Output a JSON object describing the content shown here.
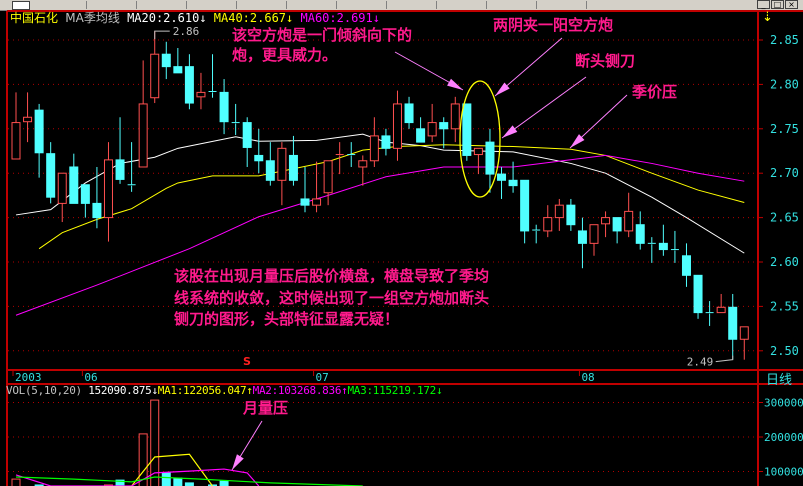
{
  "header": {
    "stock_name": "中国石化",
    "indicator": "MA季均线",
    "ma20_label": "MA20:2.610",
    "ma40_label": "MA40:2.667",
    "ma60_label": "MA60:2.691",
    "arrow_down": "↓"
  },
  "volume_header": {
    "title": "VOL(5,10,20)",
    "vol_value": "152090.875",
    "ma1_label": "MA1:122056.047",
    "ma2_label": "MA2:103268.836",
    "ma3_label": "MA3:115219.172",
    "arrow_up": "↑",
    "arrow_down": "↓"
  },
  "annotations": {
    "cannon_line1": "该空方炮是一门倾斜向下的",
    "cannon_line2": "炮，更具威力。",
    "two_yin_one_yang": "两阴夹一阳空方炮",
    "guillotine": "断头铡刀",
    "quarter_price_pressure": "季价压",
    "monthly_volume_pressure": "月量压",
    "summary_line1": "该股在出现月量压后股价横盘，横盘导致了季均",
    "summary_line2": "线系统的收敛，这时候出现了一组空方炮加断头",
    "summary_line3": "铡刀的图形，头部特征显露无疑！"
  },
  "period_label": "日线",
  "signal_mark": "S",
  "colors": {
    "up": "#ff5050",
    "down": "#50ffff",
    "ma20": "#ffffff",
    "ma40": "#ffff00",
    "ma60": "#ff00ff",
    "vol_ma1": "#ffff00",
    "vol_ma2": "#ff00ff",
    "vol_ma3": "#00ff00",
    "annotation": "#ff1a8c",
    "grid": "#b00000",
    "axis_text": "#33e0e0"
  },
  "chart_data": [
    {
      "type": "candlestick",
      "title": "中国石化",
      "y_ticks": [
        "2.85",
        "2.80",
        "2.75",
        "2.70",
        "2.65",
        "2.60",
        "2.55",
        "2.50"
      ],
      "ylim": [
        2.48,
        2.88
      ],
      "x_ticks": [
        {
          "label": "2003",
          "index": 1
        },
        {
          "label": "06",
          "index": 7
        },
        {
          "label": "07",
          "index": 27
        },
        {
          "label": "08",
          "index": 50
        }
      ],
      "grid": true,
      "high_label": {
        "text": "2.86",
        "index": 13
      },
      "low_label": {
        "text": "2.49",
        "index": 63
      },
      "candles_ohlc": [
        [
          2.716,
          2.791,
          2.716,
          2.757
        ],
        [
          2.758,
          2.791,
          2.735,
          2.763
        ],
        [
          2.771,
          2.778,
          2.695,
          2.723
        ],
        [
          2.722,
          2.735,
          2.666,
          2.673
        ],
        [
          2.666,
          2.7,
          2.645,
          2.7
        ],
        [
          2.707,
          2.722,
          2.666,
          2.666
        ],
        [
          2.687,
          2.687,
          2.65,
          2.666
        ],
        [
          2.666,
          2.707,
          2.638,
          2.65
        ],
        [
          2.65,
          2.735,
          2.623,
          2.715
        ],
        [
          2.715,
          2.763,
          2.688,
          2.693
        ],
        [
          2.687,
          2.735,
          2.679,
          2.686
        ],
        [
          2.707,
          2.827,
          2.707,
          2.778
        ],
        [
          2.785,
          2.86,
          2.779,
          2.834
        ],
        [
          2.834,
          2.848,
          2.806,
          2.82
        ],
        [
          2.82,
          2.841,
          2.813,
          2.813
        ],
        [
          2.82,
          2.834,
          2.772,
          2.779
        ],
        [
          2.786,
          2.813,
          2.772,
          2.791
        ],
        [
          2.792,
          2.834,
          2.785,
          2.791
        ],
        [
          2.791,
          2.806,
          2.744,
          2.758
        ],
        [
          2.757,
          2.778,
          2.743,
          2.756
        ],
        [
          2.757,
          2.763,
          2.707,
          2.729
        ],
        [
          2.72,
          2.75,
          2.7,
          2.714
        ],
        [
          2.714,
          2.735,
          2.686,
          2.692
        ],
        [
          2.692,
          2.735,
          2.664,
          2.728
        ],
        [
          2.72,
          2.742,
          2.686,
          2.692
        ],
        [
          2.671,
          2.707,
          2.656,
          2.664
        ],
        [
          2.664,
          2.713,
          2.656,
          2.671
        ],
        [
          2.678,
          2.714,
          2.664,
          2.714
        ],
        [
          2.72,
          2.735,
          2.699,
          2.721
        ],
        [
          2.721,
          2.735,
          2.707,
          2.72
        ],
        [
          2.707,
          2.72,
          2.686,
          2.714
        ],
        [
          2.714,
          2.763,
          2.707,
          2.742
        ],
        [
          2.742,
          2.75,
          2.72,
          2.728
        ],
        [
          2.728,
          2.793,
          2.714,
          2.778
        ],
        [
          2.778,
          2.786,
          2.75,
          2.757
        ],
        [
          2.75,
          2.763,
          2.735,
          2.735
        ],
        [
          2.742,
          2.778,
          2.735,
          2.757
        ],
        [
          2.757,
          2.763,
          2.728,
          2.75
        ],
        [
          2.75,
          2.786,
          2.735,
          2.778
        ],
        [
          2.778,
          2.778,
          2.714,
          2.72
        ],
        [
          2.721,
          2.728,
          2.699,
          2.728
        ],
        [
          2.735,
          2.75,
          2.678,
          2.699
        ],
        [
          2.699,
          2.707,
          2.671,
          2.692
        ],
        [
          2.692,
          2.713,
          2.678,
          2.686
        ],
        [
          2.692,
          2.692,
          2.621,
          2.635
        ],
        [
          2.636,
          2.642,
          2.621,
          2.635
        ],
        [
          2.635,
          2.664,
          2.628,
          2.65
        ],
        [
          2.65,
          2.671,
          2.635,
          2.664
        ],
        [
          2.664,
          2.671,
          2.635,
          2.642
        ],
        [
          2.635,
          2.65,
          2.593,
          2.621
        ],
        [
          2.621,
          2.642,
          2.607,
          2.642
        ],
        [
          2.643,
          2.657,
          2.628,
          2.65
        ],
        [
          2.65,
          2.65,
          2.621,
          2.635
        ],
        [
          2.635,
          2.678,
          2.628,
          2.657
        ],
        [
          2.642,
          2.657,
          2.614,
          2.621
        ],
        [
          2.621,
          2.628,
          2.599,
          2.62
        ],
        [
          2.621,
          2.642,
          2.607,
          2.614
        ],
        [
          2.614,
          2.635,
          2.599,
          2.613
        ],
        [
          2.607,
          2.621,
          2.572,
          2.585
        ],
        [
          2.585,
          2.585,
          2.536,
          2.543
        ],
        [
          2.543,
          2.556,
          2.528,
          2.542
        ],
        [
          2.543,
          2.564,
          2.543,
          2.549
        ],
        [
          2.549,
          2.564,
          2.49,
          2.513
        ],
        [
          2.513,
          2.527,
          2.49,
          2.527
        ]
      ],
      "series": [
        {
          "name": "MA20",
          "points": [
            [
              1,
              2.653
            ],
            [
              4,
              2.659
            ],
            [
              7,
              2.689
            ],
            [
              10,
              2.711
            ],
            [
              13,
              2.718
            ],
            [
              15,
              2.728
            ],
            [
              20,
              2.741
            ],
            [
              22,
              2.736
            ],
            [
              27,
              2.737
            ],
            [
              31,
              2.744
            ],
            [
              33,
              2.735
            ],
            [
              36,
              2.731
            ],
            [
              38,
              2.726
            ],
            [
              44,
              2.724
            ],
            [
              49,
              2.711
            ],
            [
              52,
              2.7
            ],
            [
              56,
              2.673
            ],
            [
              59,
              2.65
            ],
            [
              64,
              2.61
            ]
          ]
        },
        {
          "name": "MA40",
          "points": [
            [
              3,
              2.615
            ],
            [
              5,
              2.633
            ],
            [
              8,
              2.648
            ],
            [
              11,
              2.66
            ],
            [
              14,
              2.683
            ],
            [
              15,
              2.689
            ],
            [
              18,
              2.697
            ],
            [
              22,
              2.697
            ],
            [
              28,
              2.713
            ],
            [
              31,
              2.726
            ],
            [
              34,
              2.73
            ],
            [
              38,
              2.732
            ],
            [
              44,
              2.73
            ],
            [
              49,
              2.727
            ],
            [
              52,
              2.72
            ],
            [
              56,
              2.7
            ],
            [
              60,
              2.681
            ],
            [
              64,
              2.667
            ]
          ]
        },
        {
          "name": "MA60",
          "points": [
            [
              1,
              2.54
            ],
            [
              8,
              2.574
            ],
            [
              16,
              2.615
            ],
            [
              22,
              2.651
            ],
            [
              28,
              2.675
            ],
            [
              33,
              2.696
            ],
            [
              38,
              2.707
            ],
            [
              44,
              2.707
            ],
            [
              52,
              2.72
            ],
            [
              56,
              2.711
            ],
            [
              60,
              2.7
            ],
            [
              64,
              2.691
            ]
          ]
        }
      ]
    },
    {
      "type": "bar",
      "title": "VOL(5,10,20)",
      "y_ticks": [
        "300000",
        "200000",
        "100000"
      ],
      "grid": true,
      "bars": [
        {
          "index": 1,
          "value": 78000,
          "dir": "up"
        },
        {
          "index": 3,
          "value": 61000,
          "dir": "down"
        },
        {
          "index": 9,
          "value": 61000,
          "dir": "up"
        },
        {
          "index": 10,
          "value": 75000,
          "dir": "down"
        },
        {
          "index": 12,
          "value": 209000,
          "dir": "up"
        },
        {
          "index": 13,
          "value": 307000,
          "dir": "up"
        },
        {
          "index": 14,
          "value": 96000,
          "dir": "down"
        },
        {
          "index": 15,
          "value": 81000,
          "dir": "down"
        },
        {
          "index": 16,
          "value": 67000,
          "dir": "down"
        },
        {
          "index": 18,
          "value": 61000,
          "dir": "down"
        },
        {
          "index": 19,
          "value": 72000,
          "dir": "down"
        }
      ],
      "series": [
        {
          "name": "MA1",
          "points": [
            [
              11,
              58000
            ],
            [
              13,
              142000
            ],
            [
              16,
              150000
            ],
            [
              18,
              58000
            ]
          ]
        },
        {
          "name": "MA2",
          "points": [
            [
              1,
              90000
            ],
            [
              4,
              58000
            ],
            [
              11,
              58000
            ],
            [
              13,
              96000
            ],
            [
              16,
              101000
            ],
            [
              19,
              107000
            ],
            [
              21,
              96000
            ],
            [
              22,
              58000
            ]
          ]
        },
        {
          "name": "MA3",
          "points": [
            [
              1,
              84000
            ],
            [
              6,
              78000
            ],
            [
              11,
              70000
            ],
            [
              13,
              84000
            ],
            [
              17,
              78000
            ],
            [
              23,
              67000
            ],
            [
              31,
              58000
            ]
          ]
        }
      ]
    }
  ]
}
